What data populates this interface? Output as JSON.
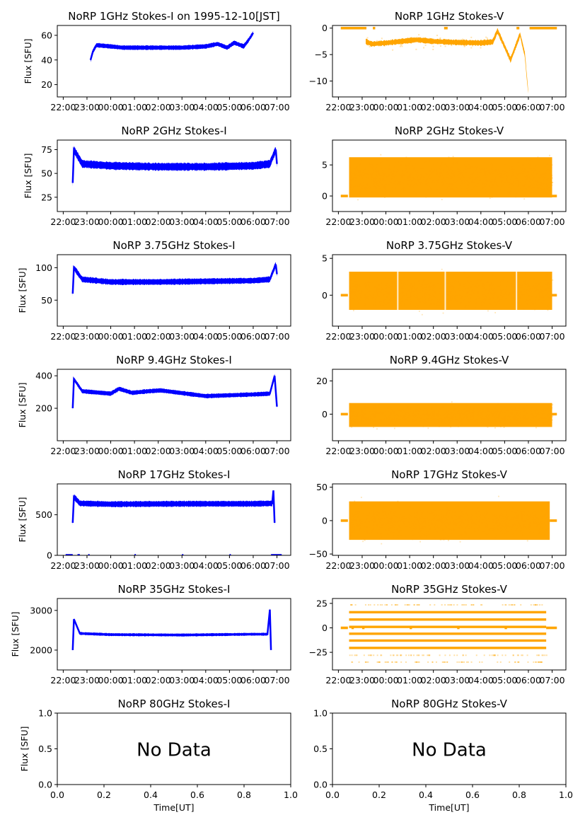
{
  "figure": {
    "date_label": "1995-12-10[JST]",
    "ylabel": "Flux [SFU]",
    "xlabel": "Time[UT]",
    "colors": {
      "stokes_i": "#0000ff",
      "stokes_v": "#ffa500"
    }
  },
  "chart_data": [
    {
      "type": "line",
      "panel": "1GHz-I",
      "title": "NoRP 1GHz Stokes-I on 1995-12-10[JST]",
      "ylabel": "Flux [SFU]",
      "xlabel": "",
      "xlim_hours": [
        -2.25,
        7.58
      ],
      "ylim": [
        10,
        68
      ],
      "xticks": [
        "22:00",
        "23:00",
        "00:00",
        "01:00",
        "02:00",
        "03:00",
        "04:00",
        "05:00",
        "06:00",
        "07:00"
      ],
      "yticks": [
        20,
        40,
        60
      ],
      "x_hours": [
        -0.85,
        -0.75,
        -0.6,
        0.0,
        0.5,
        1.0,
        2.0,
        3.0,
        4.0,
        4.5,
        4.9,
        5.2,
        5.6,
        5.8,
        6.0
      ],
      "values": [
        40,
        47,
        52,
        51,
        50,
        50,
        50,
        50,
        51,
        53,
        50,
        54,
        51,
        56,
        62
      ],
      "band": 2.0,
      "color": "#0000ff"
    },
    {
      "type": "scatter",
      "panel": "1GHz-V",
      "title": "NoRP 1GHz Stokes-V",
      "xlim_hours": [
        -2.25,
        7.58
      ],
      "ylim": [
        -13,
        0.5
      ],
      "xticks": [
        "22:00",
        "23:00",
        "00:00",
        "01:00",
        "02:00",
        "03:00",
        "04:00",
        "05:00",
        "06:00",
        "07:00"
      ],
      "yticks": [
        -10,
        -5,
        0
      ],
      "x_hours": [
        -0.85,
        -0.6,
        0.0,
        1.3,
        2.0,
        3.0,
        4.0,
        4.5,
        4.7,
        5.25,
        5.65,
        5.85,
        6.0
      ],
      "values": [
        -2.5,
        -3.0,
        -2.8,
        -2.2,
        -2.5,
        -2.7,
        -2.8,
        -2.6,
        -0.5,
        -6.0,
        -1.2,
        -5.0,
        -12.5
      ],
      "band": 1.2,
      "zero_segments_hours": [
        [
          -1.9,
          -0.82
        ],
        [
          -0.55,
          -0.45
        ],
        [
          2.45,
          2.6
        ],
        [
          5.5,
          5.62
        ],
        [
          6.05,
          7.2
        ]
      ],
      "color": "#ffa500"
    },
    {
      "type": "line",
      "panel": "2GHz-I",
      "title": "NoRP 2GHz Stokes-I",
      "ylabel": "Flux [SFU]",
      "xlim_hours": [
        -2.25,
        7.58
      ],
      "ylim": [
        10,
        85
      ],
      "yticks": [
        25,
        50,
        75
      ],
      "x_hours": [
        -1.6,
        -1.55,
        -1.2,
        0.0,
        2.0,
        4.0,
        6.0,
        6.7,
        6.95,
        7.0
      ],
      "values": [
        40,
        75,
        60,
        58,
        57,
        57,
        58,
        60,
        75,
        60
      ],
      "band": 4.5,
      "color": "#0000ff"
    },
    {
      "type": "scatter",
      "panel": "2GHz-V",
      "title": "NoRP 2GHz Stokes-V",
      "xlim_hours": [
        -2.25,
        7.58
      ],
      "ylim": [
        -2.5,
        9
      ],
      "yticks": [
        0,
        5
      ],
      "x_range_hours": [
        -1.55,
        7.0
      ],
      "center": 3.0,
      "spread": 4.5,
      "zero_segments_hours": [
        [
          -1.9,
          -1.6
        ],
        [
          7.0,
          7.2
        ]
      ],
      "color": "#ffa500"
    },
    {
      "type": "line",
      "panel": "3.75GHz-I",
      "title": "NoRP 3.75GHz Stokes-I",
      "ylabel": "Flux [SFU]",
      "xlim_hours": [
        -2.25,
        7.58
      ],
      "ylim": [
        10,
        120
      ],
      "yticks": [
        50,
        100
      ],
      "x_hours": [
        -1.6,
        -1.55,
        -1.2,
        0.0,
        2.0,
        4.0,
        6.0,
        6.7,
        6.95,
        7.0
      ],
      "values": [
        60,
        100,
        82,
        78,
        78,
        79,
        80,
        82,
        105,
        90
      ],
      "band": 5,
      "color": "#0000ff"
    },
    {
      "type": "scatter",
      "panel": "3.75GHz-V",
      "title": "NoRP 3.75GHz Stokes-V",
      "xlim_hours": [
        -2.25,
        7.58
      ],
      "ylim": [
        -4.2,
        5.5
      ],
      "yticks": [
        0,
        5
      ],
      "x_range_hours": [
        -1.55,
        7.0
      ],
      "center": 0.6,
      "spread": 3.6,
      "gaps_hours": [
        0.5,
        2.5,
        5.5
      ],
      "zero_segments_hours": [
        [
          -1.9,
          -1.6
        ],
        [
          7.0,
          7.2
        ]
      ],
      "color": "#ffa500"
    },
    {
      "type": "line",
      "panel": "9.4GHz-I",
      "title": "NoRP 9.4GHz Stokes-I",
      "ylabel": "Flux [SFU]",
      "xlim_hours": [
        -2.25,
        7.58
      ],
      "ylim": [
        0,
        440
      ],
      "yticks": [
        200,
        400
      ],
      "x_hours": [
        -1.6,
        -1.55,
        -1.2,
        0.0,
        0.35,
        0.9,
        1.6,
        2.1,
        4.0,
        6.0,
        6.7,
        6.9,
        7.0
      ],
      "values": [
        200,
        380,
        305,
        290,
        320,
        295,
        305,
        310,
        275,
        285,
        290,
        400,
        210
      ],
      "band": 15,
      "color": "#0000ff"
    },
    {
      "type": "scatter",
      "panel": "9.4GHz-V",
      "title": "NoRP 9.4GHz Stokes-V",
      "xlim_hours": [
        -2.25,
        7.58
      ],
      "ylim": [
        -16,
        27
      ],
      "yticks": [
        0,
        20
      ],
      "x_range_hours": [
        -1.55,
        7.0
      ],
      "center": -0.5,
      "spread": 10,
      "zero_segments_hours": [
        [
          -1.9,
          -1.6
        ],
        [
          7.0,
          7.2
        ]
      ],
      "color": "#ffa500"
    },
    {
      "type": "line",
      "panel": "17GHz-I",
      "title": "NoRP 17GHz Stokes-I",
      "ylabel": "Flux [SFU]",
      "xlim_hours": [
        -2.25,
        7.58
      ],
      "ylim": [
        0,
        880
      ],
      "yticks": [
        0,
        500
      ],
      "x_hours": [
        -1.6,
        -1.55,
        -1.3,
        0.0,
        3.0,
        6.0,
        6.8,
        6.85,
        6.9
      ],
      "values": [
        400,
        720,
        640,
        630,
        635,
        635,
        640,
        800,
        400
      ],
      "band": 40,
      "color": "#0000ff",
      "zero_segments_hours": [
        [
          -1.9,
          -1.6
        ],
        [
          -1.4,
          -1.3
        ],
        [
          -0.95,
          -0.9
        ],
        [
          1.0,
          1.05
        ],
        [
          3.0,
          3.05
        ],
        [
          5.0,
          5.05
        ],
        [
          6.75,
          7.2
        ]
      ]
    },
    {
      "type": "scatter",
      "panel": "17GHz-V",
      "title": "NoRP 17GHz Stokes-V",
      "xlim_hours": [
        -2.25,
        7.58
      ],
      "ylim": [
        -52,
        55
      ],
      "yticks": [
        -50,
        0,
        50
      ],
      "x_range_hours": [
        -1.55,
        6.9
      ],
      "center": 0,
      "spread": 40,
      "zero_segments_hours": [
        [
          -1.9,
          -1.6
        ],
        [
          6.9,
          7.2
        ]
      ],
      "color": "#ffa500"
    },
    {
      "type": "line",
      "panel": "35GHz-I",
      "title": "NoRP 35GHz Stokes-I",
      "ylabel": "Flux [SFU]",
      "xlim_hours": [
        -2.25,
        7.58
      ],
      "ylim": [
        1500,
        3300
      ],
      "yticks": [
        2000,
        3000
      ],
      "x_hours": [
        -1.6,
        -1.55,
        -1.3,
        0.0,
        3.0,
        6.0,
        6.6,
        6.7,
        6.75
      ],
      "values": [
        2000,
        2780,
        2420,
        2390,
        2380,
        2400,
        2400,
        3020,
        2000
      ],
      "band": 40,
      "color": "#0000ff"
    },
    {
      "type": "scatter",
      "panel": "35GHz-V",
      "title": "NoRP 35GHz Stokes-V",
      "xlim_hours": [
        -2.25,
        7.58
      ],
      "ylim": [
        -43,
        30
      ],
      "yticks": [
        -25,
        0,
        25
      ],
      "x_range_hours": [
        -1.55,
        6.75
      ],
      "levels": [
        16,
        8.5,
        1,
        -6,
        -13,
        -20.5
      ],
      "sparse_levels": [
        23.5,
        -28,
        -35
      ],
      "zero_segments_hours": [
        [
          -1.9,
          -1.6
        ],
        [
          -1.45,
          -1.35
        ],
        [
          -1.0,
          -0.9
        ],
        [
          1.0,
          1.1
        ],
        [
          3.0,
          3.1
        ],
        [
          5.0,
          5.1
        ],
        [
          6.75,
          7.2
        ]
      ],
      "color": "#ffa500"
    },
    {
      "type": "line",
      "panel": "80GHz-I",
      "title": "NoRP 80GHz Stokes-I",
      "ylabel": "Flux [SFU]",
      "xlabel": "Time[UT]",
      "xlim": [
        0,
        1
      ],
      "ylim": [
        0,
        1
      ],
      "xticks_num": [
        "0.0",
        "0.2",
        "0.4",
        "0.6",
        "0.8",
        "1.0"
      ],
      "yticks_num": [
        "0.0",
        "0.5",
        "1.0"
      ],
      "annotation": "No Data"
    },
    {
      "type": "line",
      "panel": "80GHz-V",
      "title": "NoRP 80GHz Stokes-V",
      "xlabel": "Time[UT]",
      "xlim": [
        0,
        1
      ],
      "ylim": [
        0,
        1
      ],
      "xticks_num": [
        "0.0",
        "0.2",
        "0.4",
        "0.6",
        "0.8",
        "1.0"
      ],
      "yticks_num": [
        "0.0",
        "0.5",
        "1.0"
      ],
      "annotation": "No Data"
    }
  ]
}
